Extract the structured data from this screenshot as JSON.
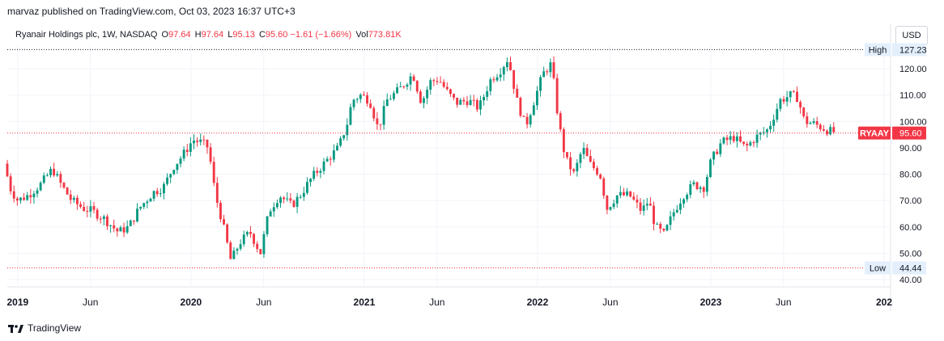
{
  "header": {
    "published": "marvaz published on TradingView.com, Oct 03, 2023 16:37 UTC+3"
  },
  "legend": {
    "symbol": "Ryanair Holdings plc, 1W, NASDAQ",
    "o_label": "O",
    "o_value": "97.64",
    "h_label": "H",
    "h_value": "97.64",
    "l_label": "L",
    "l_value": "95.13",
    "c_label": "C",
    "c_value": "95.60",
    "change": "−1.61 (−1.66%)",
    "vol_label": "Vol",
    "vol_value": "773.81K"
  },
  "currency_button": "USD",
  "brand": {
    "name": "TradingView"
  },
  "chart_data": {
    "type": "candlestick",
    "symbol": "RYAAY",
    "interval": "1W",
    "y_axis": {
      "ticks": [
        40,
        50,
        60,
        70,
        80,
        90,
        100,
        110,
        120
      ],
      "tick_labels": [
        "40.00",
        "50.00",
        "60.00",
        "70.00",
        "80.00",
        "90.00",
        "100.00",
        "110.00",
        "120.00"
      ],
      "ylim": [
        38,
        129
      ]
    },
    "x_axis": {
      "ticks": [
        {
          "label": "2019",
          "t": 2019.0
        },
        {
          "label": "Jun",
          "t": 2019.42
        },
        {
          "label": "2020",
          "t": 2020.0
        },
        {
          "label": "Jun",
          "t": 2020.42
        },
        {
          "label": "2021",
          "t": 2021.0
        },
        {
          "label": "Jun",
          "t": 2021.42
        },
        {
          "label": "2022",
          "t": 2022.0
        },
        {
          "label": "Jun",
          "t": 2022.42
        },
        {
          "label": "2023",
          "t": 2023.0
        },
        {
          "label": "Jun",
          "t": 2023.42
        },
        {
          "label": "202",
          "t": 2024.0
        }
      ],
      "xlim": [
        2018.94,
        2024.0
      ]
    },
    "markers": {
      "high": {
        "label": "High",
        "value": 127.23,
        "value_label": "127.23"
      },
      "low": {
        "label": "Low",
        "value": 44.44,
        "value_label": "44.44"
      },
      "last": {
        "label": "RYAAY",
        "value": 95.6,
        "value_label": "95.60"
      }
    },
    "colors": {
      "up": "#089981",
      "down": "#f23645",
      "grid": "#f0f3fa",
      "last_line": "#f23645"
    },
    "anchors": [
      [
        2018.94,
        84
      ],
      [
        2018.98,
        74
      ],
      [
        2019.02,
        70
      ],
      [
        2019.08,
        72
      ],
      [
        2019.15,
        76
      ],
      [
        2019.22,
        82
      ],
      [
        2019.27,
        76
      ],
      [
        2019.33,
        70
      ],
      [
        2019.4,
        67
      ],
      [
        2019.45,
        66
      ],
      [
        2019.52,
        63
      ],
      [
        2019.6,
        58
      ],
      [
        2019.66,
        60
      ],
      [
        2019.72,
        67
      ],
      [
        2019.8,
        73
      ],
      [
        2019.86,
        75
      ],
      [
        2019.92,
        83
      ],
      [
        2019.97,
        87
      ],
      [
        2020.03,
        93
      ],
      [
        2020.08,
        92
      ],
      [
        2020.12,
        90
      ],
      [
        2020.16,
        72
      ],
      [
        2020.2,
        62
      ],
      [
        2020.25,
        47
      ],
      [
        2020.3,
        54
      ],
      [
        2020.36,
        58
      ],
      [
        2020.42,
        50
      ],
      [
        2020.47,
        66
      ],
      [
        2020.53,
        72
      ],
      [
        2020.6,
        68
      ],
      [
        2020.65,
        72
      ],
      [
        2020.72,
        79
      ],
      [
        2020.8,
        85
      ],
      [
        2020.87,
        90
      ],
      [
        2020.92,
        99
      ],
      [
        2020.95,
        108
      ],
      [
        2021.0,
        110
      ],
      [
        2021.05,
        108
      ],
      [
        2021.1,
        97
      ],
      [
        2021.15,
        108
      ],
      [
        2021.22,
        112
      ],
      [
        2021.3,
        118
      ],
      [
        2021.35,
        107
      ],
      [
        2021.4,
        115
      ],
      [
        2021.45,
        116
      ],
      [
        2021.5,
        111
      ],
      [
        2021.55,
        107
      ],
      [
        2021.62,
        108
      ],
      [
        2021.68,
        105
      ],
      [
        2021.75,
        116
      ],
      [
        2021.8,
        119
      ],
      [
        2021.85,
        124
      ],
      [
        2021.9,
        108
      ],
      [
        2021.95,
        98
      ],
      [
        2022.0,
        108
      ],
      [
        2022.05,
        118
      ],
      [
        2022.1,
        122
      ],
      [
        2022.14,
        100
      ],
      [
        2022.18,
        86
      ],
      [
        2022.23,
        80
      ],
      [
        2022.28,
        90
      ],
      [
        2022.32,
        84
      ],
      [
        2022.38,
        80
      ],
      [
        2022.42,
        67
      ],
      [
        2022.48,
        72
      ],
      [
        2022.55,
        72
      ],
      [
        2022.62,
        66
      ],
      [
        2022.66,
        70
      ],
      [
        2022.7,
        60
      ],
      [
        2022.75,
        57
      ],
      [
        2022.8,
        65
      ],
      [
        2022.86,
        72
      ],
      [
        2022.92,
        76
      ],
      [
        2022.98,
        75
      ],
      [
        2023.02,
        85
      ],
      [
        2023.08,
        92
      ],
      [
        2023.15,
        94
      ],
      [
        2023.22,
        90
      ],
      [
        2023.28,
        94
      ],
      [
        2023.35,
        97
      ],
      [
        2023.42,
        108
      ],
      [
        2023.48,
        110
      ],
      [
        2023.52,
        109
      ],
      [
        2023.56,
        100
      ],
      [
        2023.62,
        99
      ],
      [
        2023.68,
        97
      ],
      [
        2023.72,
        96
      ]
    ]
  }
}
